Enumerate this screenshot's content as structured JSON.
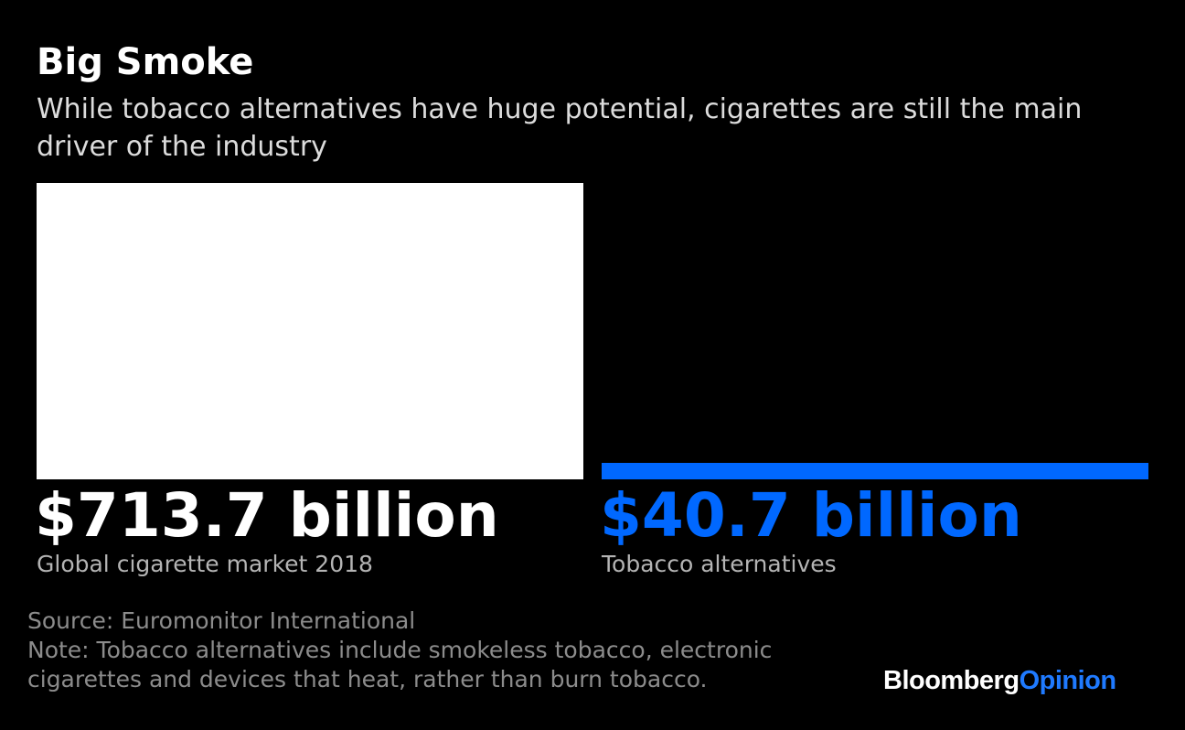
{
  "colors": {
    "background": "#000000",
    "cigarette_bar": "#ffffff",
    "alternatives_bar": "#0068ff",
    "logo_brand": "#ffffff",
    "logo_opinion": "#1f7aff"
  },
  "header": {
    "title": "Big Smoke",
    "subtitle": "While tobacco alternatives have huge potential, cigarettes are still the main driver of the industry"
  },
  "chart_data": {
    "type": "bar",
    "title": "Big Smoke",
    "subtitle": "While tobacco alternatives have huge potential, cigarettes are still the main driver of the industry",
    "categories": [
      "Global cigarette market 2018",
      "Tobacco alternatives"
    ],
    "values": [
      713.7,
      40.7
    ],
    "unit": "billion USD",
    "value_labels": [
      "$713.7 billion",
      "$40.7 billion"
    ],
    "bar_colors": [
      "#ffffff",
      "#0068ff"
    ],
    "grid": false
  },
  "footer": {
    "source": "Source: Euromonitor International",
    "note_line1": "Note: Tobacco alternatives include smokeless tobacco, electronic",
    "note_line2": "cigarettes and devices that heat, rather than burn tobacco."
  },
  "logo": {
    "brand": "Bloomberg",
    "opinion": "Opinion"
  }
}
